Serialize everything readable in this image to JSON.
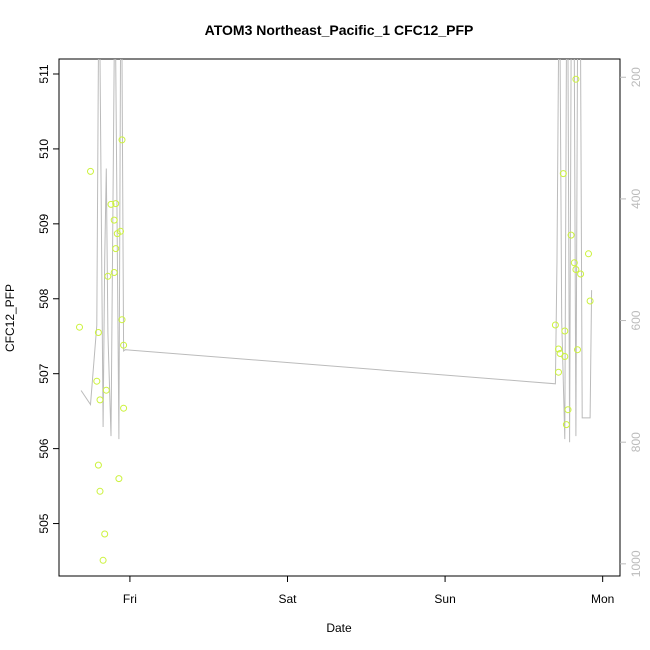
{
  "chart_data": {
    "type": "scatter",
    "title": "ATOM3 Northeast_Pacific_1 CFC12_PFP",
    "xlabel": "Date",
    "ylabel": "CFC12_PFP",
    "x_tick_labels": [
      "Fri",
      "Sat",
      "Sun",
      "Mon"
    ],
    "x_ticks": [
      0,
      1,
      2,
      3
    ],
    "xlim": [
      -0.45,
      3.11
    ],
    "ylim": [
      504.3,
      511.2
    ],
    "y_ticks": [
      505,
      506,
      507,
      508,
      509,
      510,
      511
    ],
    "y2_ticks": [
      200,
      400,
      600,
      800,
      1000
    ],
    "y2lim": [
      1020,
      170
    ],
    "grid": false,
    "colors": {
      "points": "#ccf23d",
      "line": "#bbbbbb",
      "right_axis": "#bbbbbb",
      "frame": "#000000"
    },
    "series": [
      {
        "kind": "points",
        "points": [
          [
            -0.32,
            507.62
          ],
          [
            -0.25,
            509.7
          ],
          [
            -0.21,
            506.9
          ],
          [
            -0.2,
            507.55
          ],
          [
            -0.2,
            505.78
          ],
          [
            -0.19,
            506.65
          ],
          [
            -0.19,
            505.43
          ],
          [
            -0.17,
            504.51
          ],
          [
            -0.16,
            504.86
          ],
          [
            -0.15,
            506.78
          ],
          [
            -0.14,
            508.3
          ],
          [
            -0.12,
            509.26
          ],
          [
            -0.1,
            508.35
          ],
          [
            -0.1,
            509.05
          ],
          [
            -0.09,
            509.27
          ],
          [
            -0.09,
            508.67
          ],
          [
            -0.08,
            508.87
          ],
          [
            -0.07,
            505.6
          ],
          [
            -0.06,
            508.9
          ],
          [
            -0.05,
            510.12
          ],
          [
            -0.05,
            507.72
          ],
          [
            -0.04,
            507.38
          ],
          [
            -0.04,
            506.54
          ],
          [
            2.7,
            507.65
          ],
          [
            2.72,
            507.02
          ],
          [
            2.72,
            507.33
          ],
          [
            2.73,
            507.27
          ],
          [
            2.75,
            509.67
          ],
          [
            2.76,
            507.23
          ],
          [
            2.76,
            507.57
          ],
          [
            2.77,
            506.32
          ],
          [
            2.78,
            506.52
          ],
          [
            2.8,
            508.85
          ],
          [
            2.82,
            508.48
          ],
          [
            2.83,
            508.39
          ],
          [
            2.83,
            510.93
          ],
          [
            2.84,
            507.32
          ],
          [
            2.86,
            508.33
          ],
          [
            2.91,
            508.6
          ],
          [
            2.92,
            507.97
          ]
        ]
      },
      {
        "kind": "line",
        "axis": "right",
        "points": [
          [
            -0.31,
            715
          ],
          [
            -0.25,
            738
          ],
          [
            -0.21,
            608
          ],
          [
            -0.2,
            168
          ],
          [
            -0.19,
            168
          ],
          [
            -0.17,
            775
          ],
          [
            -0.16,
            500
          ],
          [
            -0.15,
            350
          ],
          [
            -0.14,
            620
          ],
          [
            -0.12,
            790
          ],
          [
            -0.1,
            168
          ],
          [
            -0.09,
            168
          ],
          [
            -0.07,
            795
          ],
          [
            -0.06,
            168
          ],
          [
            -0.05,
            168
          ],
          [
            -0.04,
            650
          ],
          [
            -0.03,
            648
          ],
          [
            2.7,
            704
          ],
          [
            2.71,
            500
          ],
          [
            2.72,
            168
          ],
          [
            2.73,
            168
          ],
          [
            2.74,
            600
          ],
          [
            2.76,
            795
          ],
          [
            2.77,
            168
          ],
          [
            2.78,
            168
          ],
          [
            2.79,
            800
          ],
          [
            2.8,
            168
          ],
          [
            2.82,
            168
          ],
          [
            2.83,
            790
          ],
          [
            2.84,
            168
          ],
          [
            2.86,
            168
          ],
          [
            2.87,
            760
          ],
          [
            2.92,
            760
          ],
          [
            2.93,
            550
          ]
        ]
      }
    ]
  }
}
